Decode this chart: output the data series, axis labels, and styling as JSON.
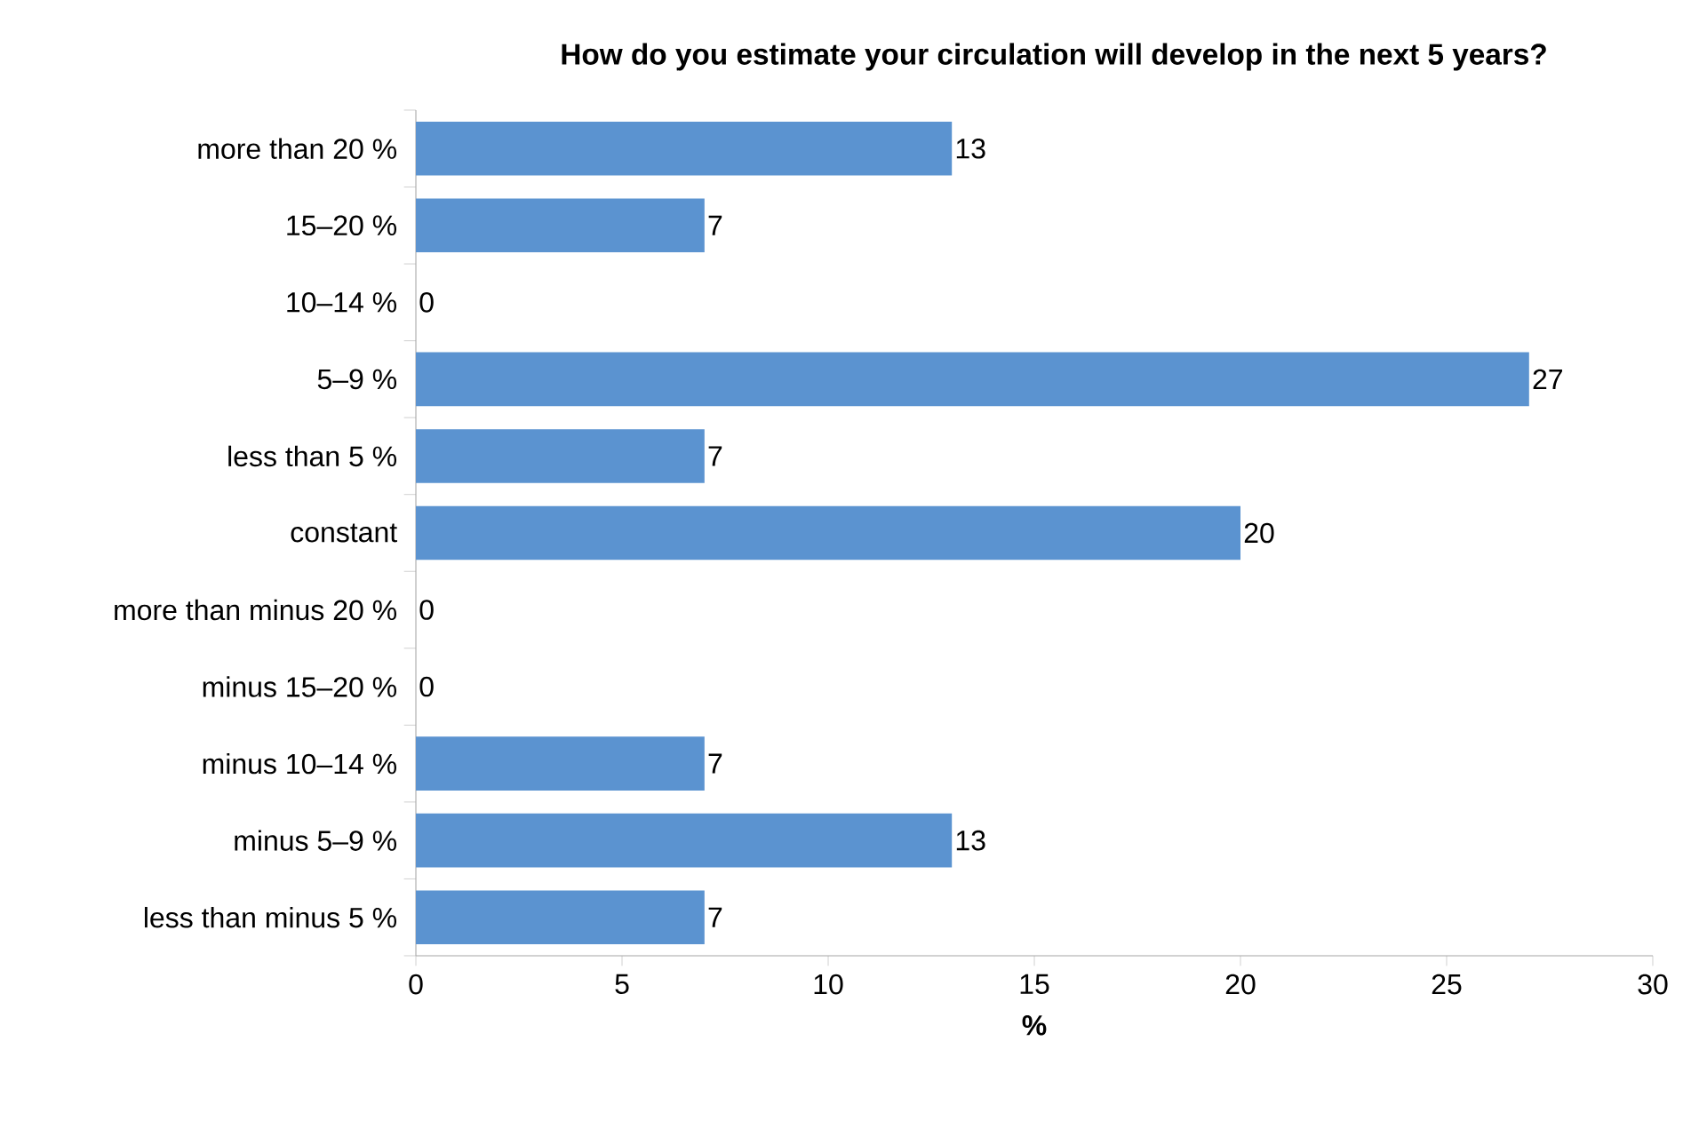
{
  "chart_data": {
    "type": "bar",
    "orientation": "horizontal",
    "title": "How do you estimate your circulation will develop in the next 5 years?",
    "xlabel": "%",
    "categories": [
      "more than 20 %",
      "15–20 %",
      "10–14 %",
      "5–9 %",
      "less than 5 %",
      "constant",
      "more than minus 20 %",
      "minus 15–20 %",
      "minus 10–14 %",
      "minus 5–9 %",
      "less than minus 5 %"
    ],
    "values": [
      13,
      7,
      0,
      27,
      7,
      20,
      0,
      0,
      7,
      13,
      7
    ],
    "color": "#5b93d0",
    "xlim": [
      0,
      30
    ],
    "xticks": [
      0,
      5,
      10,
      15,
      20,
      25,
      30
    ],
    "data_labels": true
  }
}
